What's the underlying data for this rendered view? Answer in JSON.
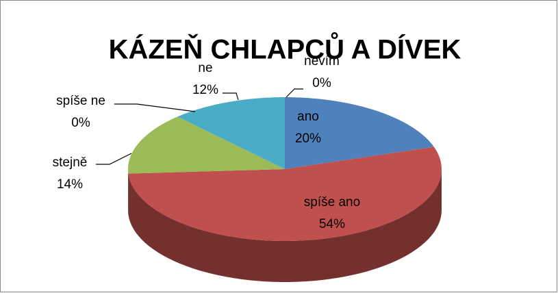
{
  "chart_data": {
    "type": "pie",
    "title": "KÁZEŇ CHLAPCŮ A DÍVEK",
    "categories": [
      "ano",
      "spíše ano",
      "stejně",
      "spíše ne",
      "ne",
      "nevím"
    ],
    "values": [
      20,
      54,
      14,
      0,
      12,
      0
    ],
    "value_labels": [
      "20%",
      "54%",
      "14%",
      "0%",
      "12%",
      "0%"
    ],
    "colors": [
      "#4f81bd",
      "#c0504d",
      "#9bbb59",
      "#8064a2",
      "#4bacc6",
      "#f79646"
    ]
  }
}
